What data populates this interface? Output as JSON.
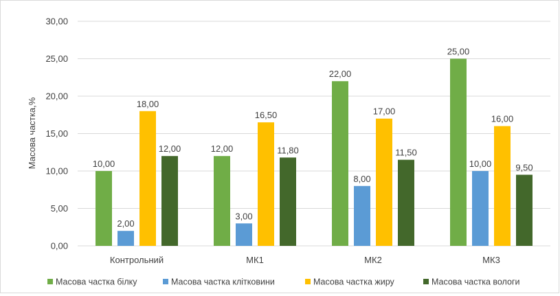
{
  "chart_data": {
    "type": "bar",
    "title": "",
    "xlabel": "",
    "ylabel": "Масова частка,%",
    "ylim": [
      0,
      30
    ],
    "yticks": [
      "0,00",
      "5,00",
      "10,00",
      "15,00",
      "20,00",
      "25,00",
      "30,00"
    ],
    "grid": true,
    "legend_position": "bottom",
    "categories": [
      "Контрольний",
      "МК1",
      "МК2",
      "МК3"
    ],
    "series": [
      {
        "name": "Масова частка білку",
        "color": "#70ad47",
        "values": [
          10,
          12,
          22,
          25
        ],
        "labels": [
          "10,00",
          "12,00",
          "22,00",
          "25,00"
        ]
      },
      {
        "name": "Масова частка клітковини",
        "color": "#5b9bd5",
        "values": [
          2,
          3,
          8,
          10
        ],
        "labels": [
          "2,00",
          "3,00",
          "8,00",
          "10,00"
        ]
      },
      {
        "name": "Масова частка жиру",
        "color": "#ffc000",
        "values": [
          18,
          16.5,
          17,
          16
        ],
        "labels": [
          "18,00",
          "16,50",
          "17,00",
          "16,00"
        ]
      },
      {
        "name": "Масова частка вологи",
        "color": "#43682b",
        "values": [
          12,
          11.8,
          11.5,
          9.5
        ],
        "labels": [
          "12,00",
          "11,80",
          "11,50",
          "9,50"
        ]
      }
    ]
  }
}
